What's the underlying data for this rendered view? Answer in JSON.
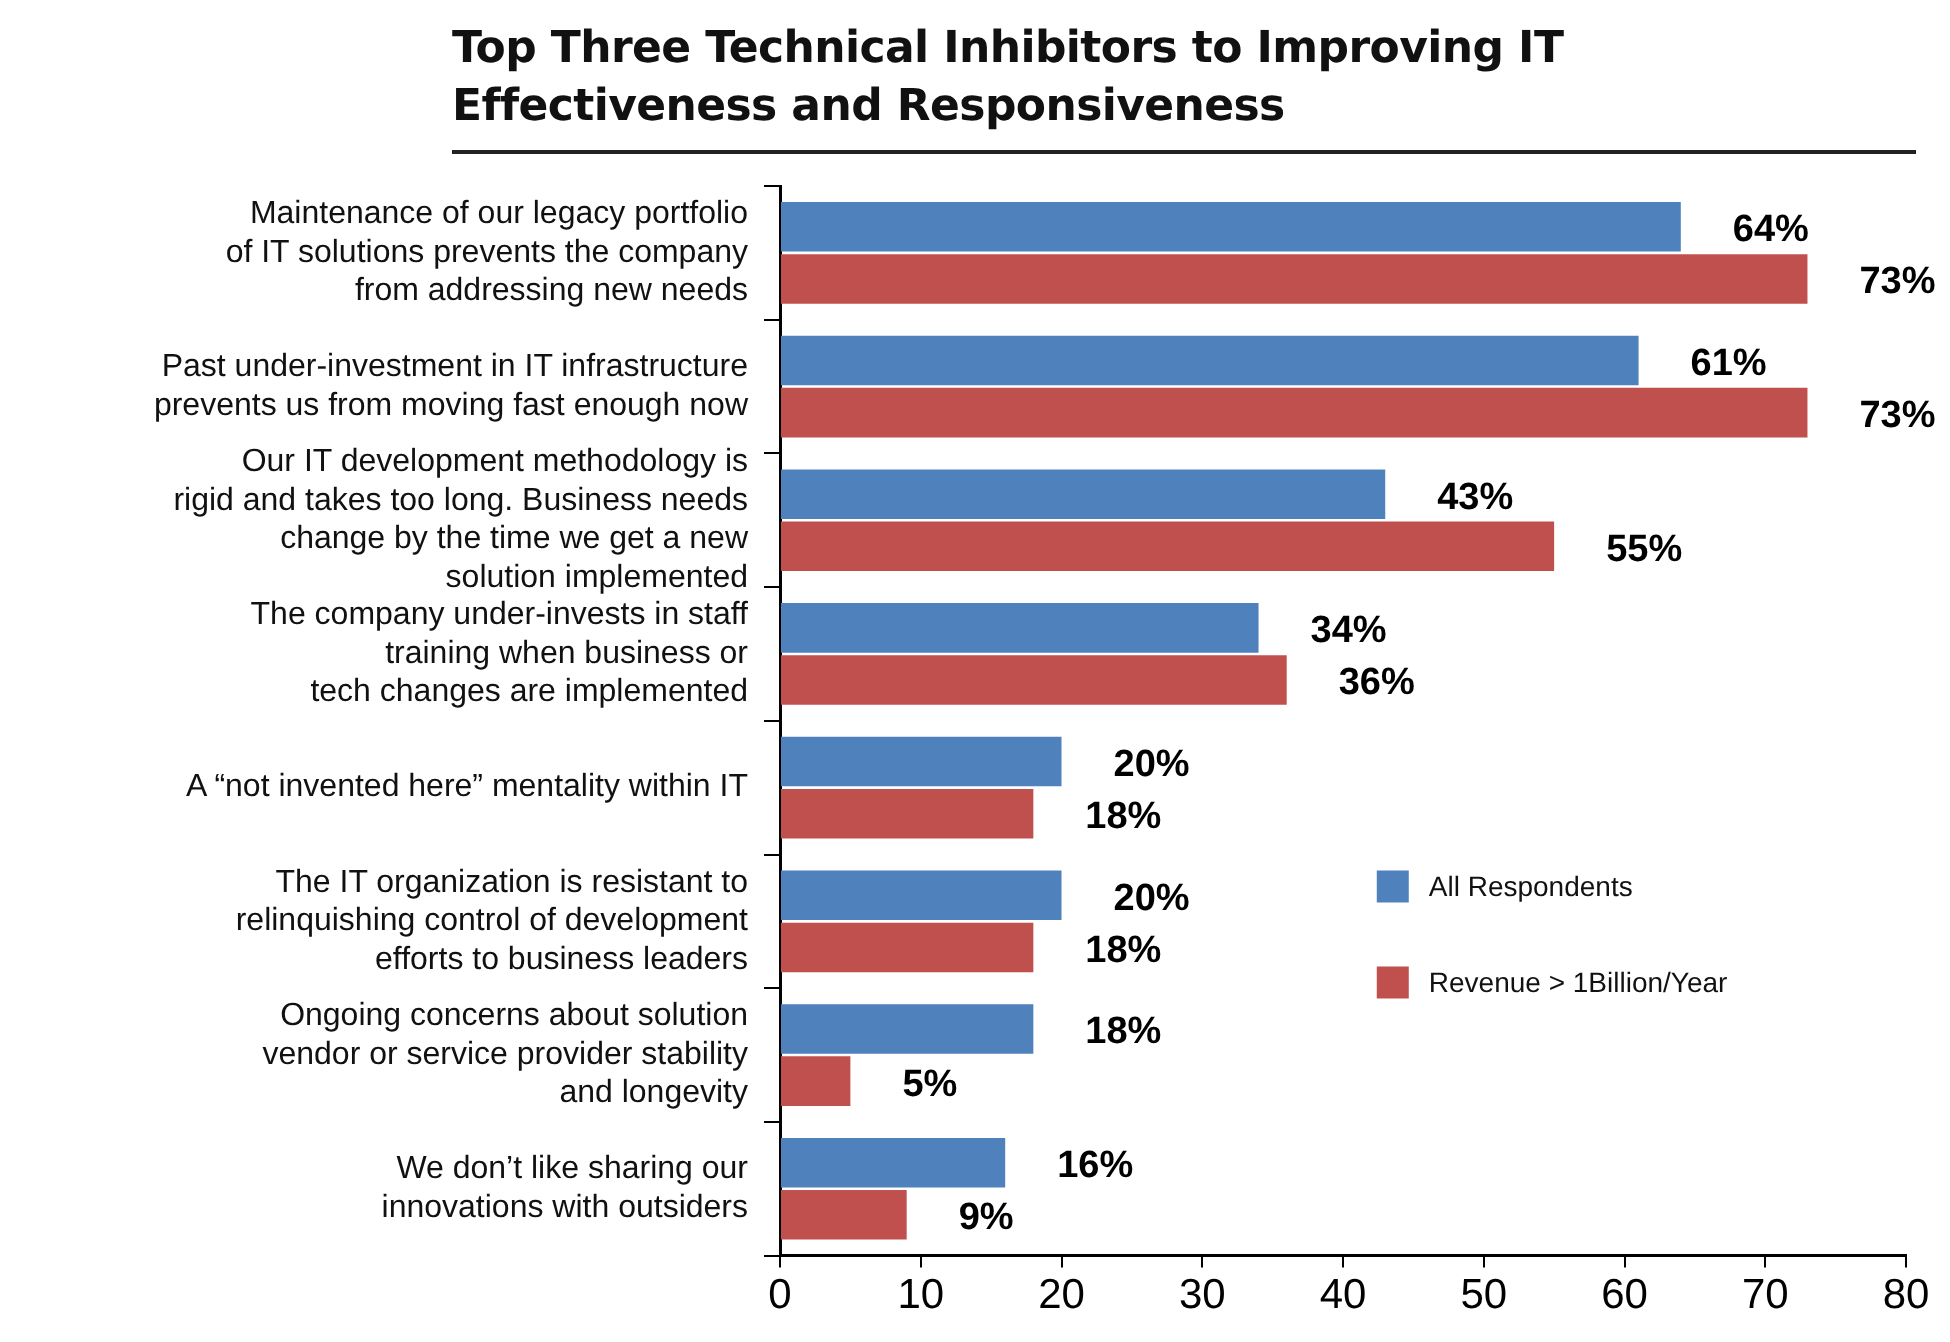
{
  "chart_data": {
    "type": "bar",
    "orientation": "horizontal",
    "title": "Top Three Technical Inhibitors to Improving IT\nEffectiveness and Responsiveness",
    "categories": [
      "Maintenance of our legacy portfolio\nof IT solutions prevents the company\nfrom addressing new needs",
      "Past under-investment in IT infrastructure\nprevents us from moving fast enough now",
      "Our IT development methodology is\nrigid and takes too long. Business needs\nchange by the time we get a new\nsolution implemented",
      "The company under-invests in staff\ntraining when business or\ntech changes are implemented",
      "A “not invented here” mentality within IT",
      "The IT organization is resistant to\nrelinquishing control of development\nefforts to business leaders",
      "Ongoing concerns about solution\nvendor or service provider stability\nand longevity",
      "We don’t like sharing our\ninnovations with outsiders"
    ],
    "series": [
      {
        "name": "All Respondents",
        "color": "#4f81bd",
        "values": [
          64,
          61,
          43,
          34,
          20,
          20,
          18,
          16
        ],
        "value_labels": [
          "64%",
          "61%",
          "43%",
          "34%",
          "20%",
          "20%",
          "18%",
          "16%"
        ]
      },
      {
        "name": "Revenue > 1Billion/Year",
        "color": "#c0504d",
        "values": [
          73,
          73,
          55,
          36,
          18,
          18,
          5,
          9
        ],
        "value_labels": [
          "73%",
          "73%",
          "55%",
          "36%",
          "18%",
          "18%",
          "5%",
          "9%"
        ]
      }
    ],
    "xlim": [
      0,
      80
    ],
    "xticks": [
      0,
      10,
      20,
      30,
      40,
      50,
      60,
      70,
      80
    ],
    "grid": false,
    "legend": "right"
  }
}
